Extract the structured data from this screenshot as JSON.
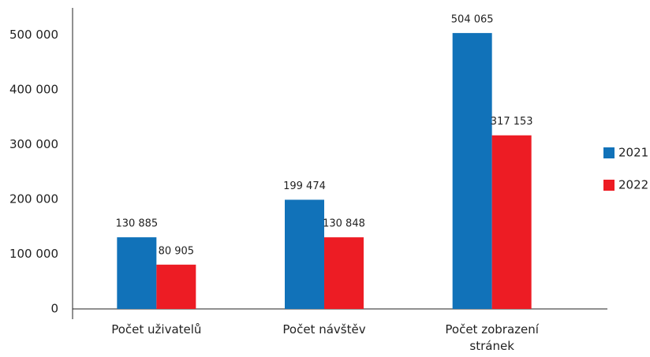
{
  "chart_data": {
    "type": "bar",
    "categories": [
      "Počet uživatelů",
      "Počet návštěv",
      "Počet zobrazení stránek"
    ],
    "series": [
      {
        "name": "2021",
        "color": "#1172b9",
        "values": [
          130885,
          199474,
          504065
        ],
        "value_labels": [
          "130 885",
          "199 474",
          "504 065"
        ]
      },
      {
        "name": "2022",
        "color": "#ed1c24",
        "values": [
          80905,
          130848,
          317153
        ],
        "value_labels": [
          "80 905",
          "130 848",
          "317 153"
        ]
      }
    ],
    "ylim": [
      0,
      550000
    ],
    "yticks": [
      0,
      {
        "value": 100000,
        "label": "100 000"
      },
      {
        "value": 200000,
        "label": "200 000"
      },
      {
        "value": 300000,
        "label": "300 000"
      },
      {
        "value": 400000,
        "label": "400 000"
      },
      {
        "value": 500000,
        "label": "500 000"
      }
    ],
    "grid": false,
    "legend": "right"
  }
}
